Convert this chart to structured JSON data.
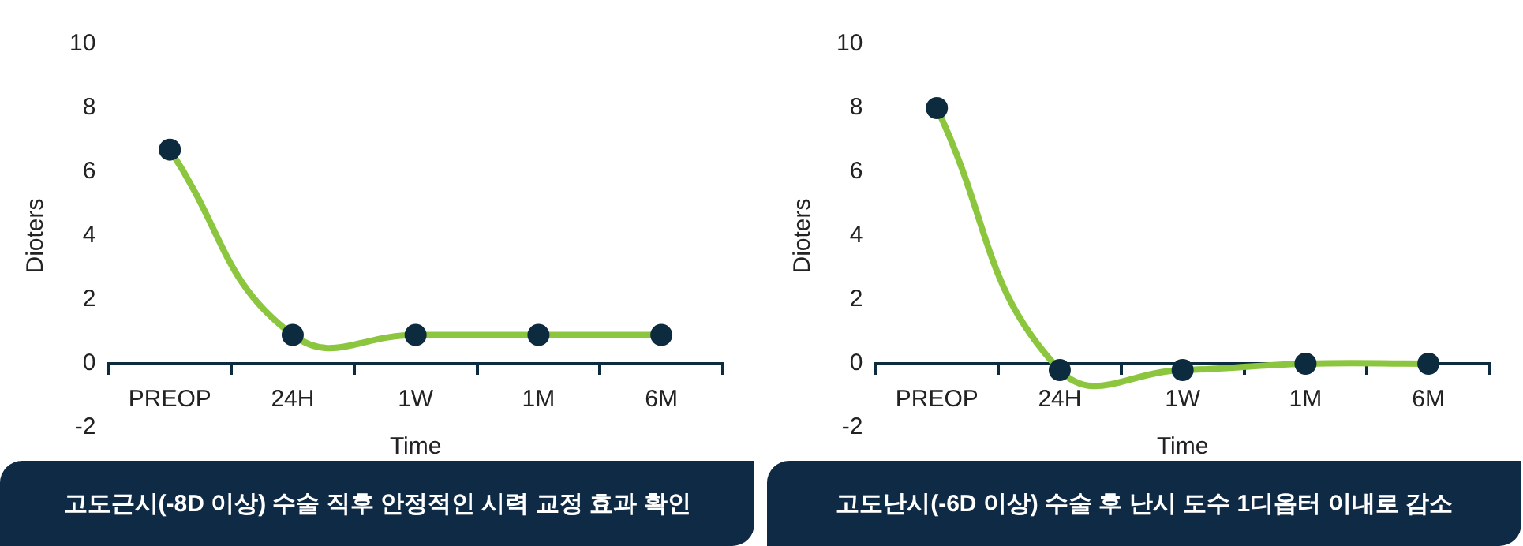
{
  "chart_data": [
    {
      "type": "line",
      "categories": [
        "PREOP",
        "24H",
        "1W",
        "1M",
        "6M"
      ],
      "xlabel": "Time",
      "ylabel": "Dioters",
      "ylim": [
        -2,
        10
      ],
      "yticks": [
        -2,
        0,
        2,
        4,
        6,
        8,
        10
      ],
      "grid": false,
      "legend": false,
      "marker": "circle",
      "line_style": "solid",
      "series": [
        {
          "color": "#8cc63f",
          "values": [
            6.7,
            0.9,
            0.9,
            0.9,
            0.9
          ]
        }
      ],
      "annotations": [
        "고도근시(-8D 이상) 수술 직후 안정적인 시력 교정 효과 확인"
      ]
    },
    {
      "type": "line",
      "categories": [
        "PREOP",
        "24H",
        "1W",
        "1M",
        "6M"
      ],
      "xlabel": "Time",
      "ylabel": "Dioters",
      "ylim": [
        -2,
        10
      ],
      "yticks": [
        -2,
        0,
        2,
        4,
        6,
        8,
        10
      ],
      "grid": false,
      "legend": false,
      "marker": "circle",
      "line_style": "solid",
      "series": [
        {
          "color": "#8cc63f",
          "values": [
            8,
            -0.2,
            -0.2,
            0,
            0
          ]
        }
      ],
      "annotations": [
        "고도난시(-6D 이상) 수술 후 난시 도수 1디옵터 이내로 감소"
      ]
    }
  ]
}
